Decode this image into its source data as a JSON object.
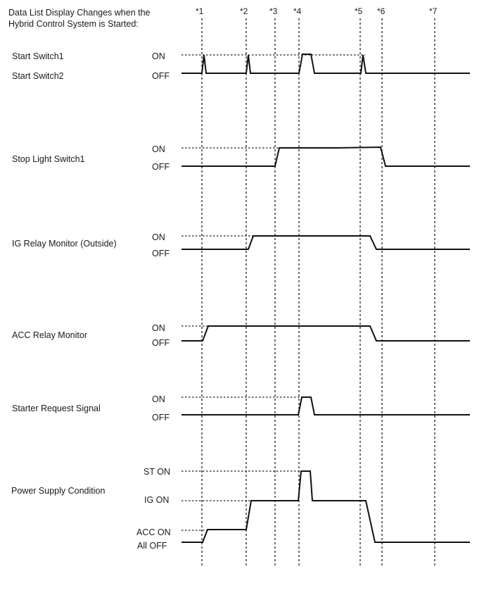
{
  "title_lines": [
    "Data List Display Changes when the",
    "Hybrid Control System is Started:"
  ],
  "markers": [
    "*1",
    "*2",
    "*3",
    "*4",
    "*5",
    "*6",
    "*7"
  ],
  "rows": [
    {
      "label_lines": [
        "Start Switch1",
        "Start Switch2"
      ],
      "levels": [
        "ON",
        "OFF"
      ]
    },
    {
      "label_lines": [
        "Stop Light Switch1"
      ],
      "levels": [
        "ON",
        "OFF"
      ]
    },
    {
      "label_lines": [
        "IG Relay Monitor (Outside)"
      ],
      "levels": [
        "ON",
        "OFF"
      ]
    },
    {
      "label_lines": [
        "ACC Relay Monitor"
      ],
      "levels": [
        "ON",
        "OFF"
      ]
    },
    {
      "label_lines": [
        "Starter Request Signal"
      ],
      "levels": [
        "ON",
        "OFF"
      ]
    },
    {
      "label_lines": [
        "Power Supply Condition"
      ],
      "levels": [
        "ST ON",
        "IG ON",
        "ACC ON",
        "All OFF"
      ]
    }
  ]
}
